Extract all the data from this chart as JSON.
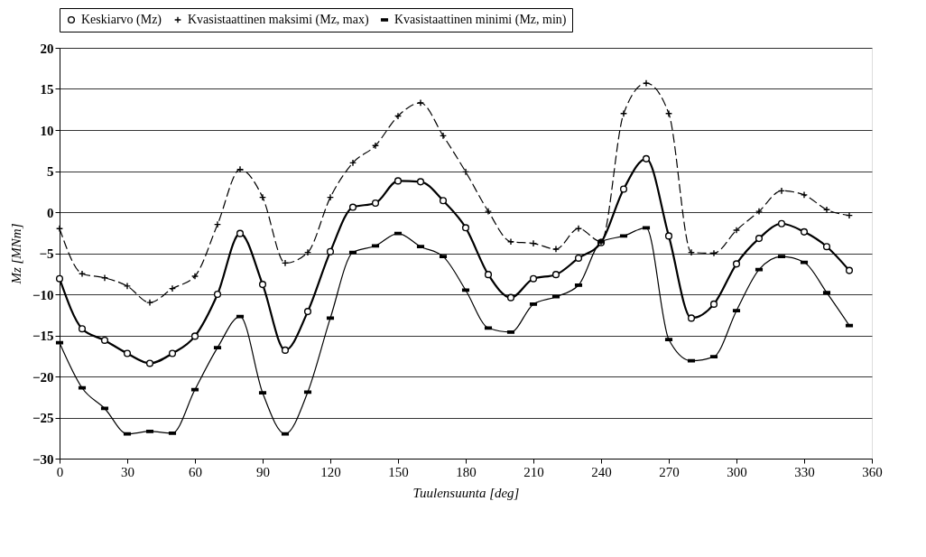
{
  "chart_data": {
    "type": "line",
    "xlabel": "Tuulensuunta [deg]",
    "ylabel": "Mz [MNm]",
    "x": [
      0,
      10,
      20,
      30,
      40,
      50,
      60,
      70,
      80,
      90,
      100,
      110,
      120,
      130,
      140,
      150,
      160,
      170,
      180,
      190,
      200,
      210,
      220,
      230,
      240,
      250,
      260,
      270,
      280,
      290,
      300,
      310,
      320,
      330,
      340,
      350
    ],
    "series": [
      {
        "name": "Keskiarvo (Mz)",
        "color": "#000000",
        "marker": "circle",
        "line_style": "solid",
        "values": [
          -8.1,
          -14.2,
          -15.6,
          -17.2,
          -18.4,
          -17.2,
          -15.1,
          -10,
          -2.6,
          -8.8,
          -16.8,
          -12.1,
          -4.8,
          0.6,
          1.1,
          3.8,
          3.7,
          1.4,
          -1.9,
          -7.6,
          -10.4,
          -8.1,
          -7.6,
          -5.6,
          -3.7,
          2.8,
          6.5,
          -2.9,
          -12.9,
          -11.2,
          -6.3,
          -3.2,
          -1.4,
          -2.4,
          -4.2,
          -7.1
        ]
      },
      {
        "name": "Kvasistaattinen maksimi (Mz, max)",
        "color": "#000000",
        "marker": "cross",
        "line_style": "dashed",
        "values": [
          -2,
          -7.5,
          -8,
          -9,
          -11,
          -9.3,
          -7.8,
          -1.5,
          5.2,
          1.8,
          -6.2,
          -4.9,
          1.8,
          6,
          8.1,
          11.7,
          13.3,
          9.3,
          4.9,
          0.1,
          -3.6,
          -3.8,
          -4.5,
          -2,
          -3.6,
          12,
          15.7,
          12,
          -4.9,
          -5,
          -2.2,
          0.1,
          2.6,
          2.1,
          0.3,
          -0.4
        ]
      },
      {
        "name": "Kvasistaattinen minimi (Mz, min)",
        "color": "#000000",
        "marker": "square",
        "line_style": "solid",
        "values": [
          -15.9,
          -21.4,
          -23.9,
          -27,
          -26.7,
          -26.9,
          -21.6,
          -16.5,
          -12.7,
          -22,
          -27,
          -21.9,
          -12.9,
          -4.9,
          -4.1,
          -2.6,
          -4.2,
          -5.4,
          -9.5,
          -14.1,
          -14.6,
          -11.2,
          -10.3,
          -8.9,
          -3.6,
          -2.9,
          -1.9,
          -15.5,
          -18.1,
          -17.6,
          -12,
          -7,
          -5.4,
          -6.1,
          -9.8,
          -13.8
        ]
      }
    ],
    "xlim": [
      0,
      360
    ],
    "xticks": [
      0,
      30,
      60,
      90,
      120,
      150,
      180,
      210,
      240,
      270,
      300,
      330,
      360
    ],
    "ylim": [
      -30,
      20
    ],
    "yticks": [
      -30,
      -25,
      -20,
      -15,
      -10,
      -5,
      0,
      5,
      10,
      15,
      20
    ],
    "grid": "y",
    "legend": "top"
  }
}
